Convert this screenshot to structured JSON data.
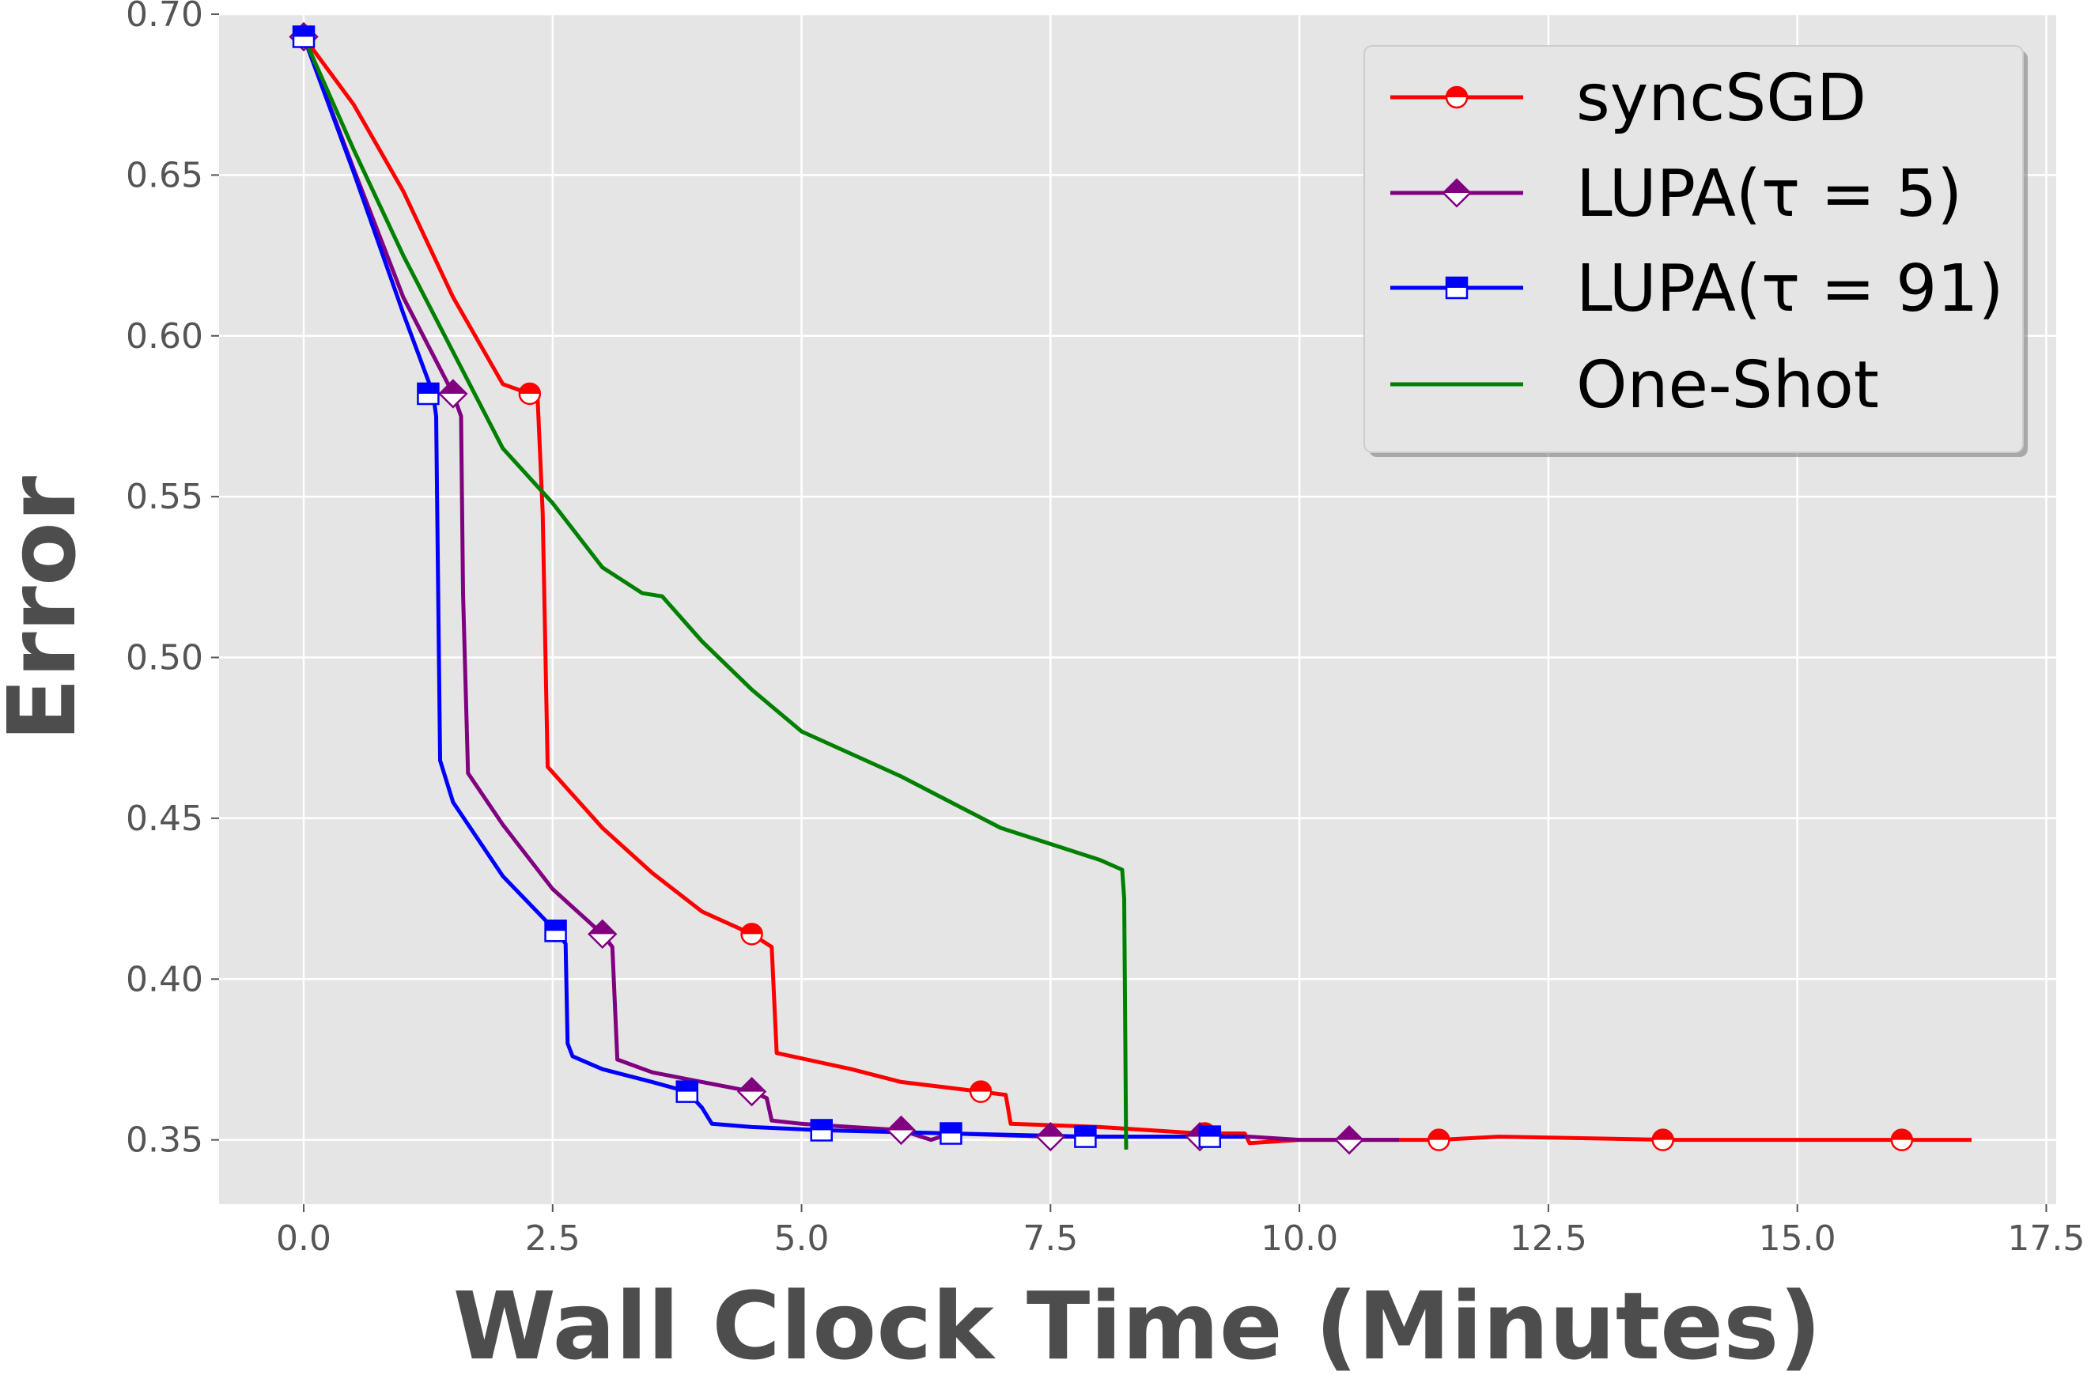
{
  "chart_data": {
    "type": "line",
    "title": "",
    "xlabel": "Wall Clock Time (Minutes)",
    "ylabel": "Error",
    "xlim": [
      -0.85,
      17.6
    ],
    "ylim": [
      0.33,
      0.7
    ],
    "xticks": [
      0.0,
      2.5,
      5.0,
      7.5,
      10.0,
      12.5,
      15.0,
      17.5
    ],
    "xtick_labels": [
      "0.0",
      "2.5",
      "5.0",
      "7.5",
      "10.0",
      "12.5",
      "15.0",
      "17.5"
    ],
    "yticks": [
      0.35,
      0.4,
      0.45,
      0.5,
      0.55,
      0.6,
      0.65,
      0.7
    ],
    "ytick_labels": [
      "0.35",
      "0.40",
      "0.45",
      "0.50",
      "0.55",
      "0.60",
      "0.65",
      "0.70"
    ],
    "grid": true,
    "legend_position": "top-right",
    "series": [
      {
        "name": "syncSGD",
        "color": "#ff0000",
        "marker": "circle",
        "x": [
          0.0,
          0.5,
          1.0,
          1.5,
          2.0,
          2.27,
          2.35,
          2.4,
          2.45,
          3.0,
          3.5,
          4.0,
          4.5,
          4.7,
          4.75,
          5.5,
          6.0,
          6.8,
          7.05,
          7.1,
          8.0,
          9.0,
          9.45,
          9.5,
          10.0,
          11.4,
          12.0,
          13.7,
          14.3,
          15.0,
          16.0,
          16.75
        ],
        "y": [
          0.693,
          0.672,
          0.645,
          0.612,
          0.585,
          0.582,
          0.58,
          0.545,
          0.466,
          0.447,
          0.433,
          0.421,
          0.414,
          0.41,
          0.377,
          0.372,
          0.368,
          0.365,
          0.364,
          0.355,
          0.354,
          0.352,
          0.352,
          0.349,
          0.35,
          0.35,
          0.351,
          0.35,
          0.35,
          0.35,
          0.35,
          0.35
        ],
        "marker_x": [
          0.0,
          2.27,
          4.5,
          6.8,
          9.05,
          11.4,
          13.65,
          16.05
        ],
        "marker_y": [
          0.693,
          0.582,
          0.414,
          0.365,
          0.352,
          0.35,
          0.35,
          0.35
        ]
      },
      {
        "name": "LUPA(τ = 5)",
        "color": "#800080",
        "marker": "diamond",
        "x": [
          0.0,
          0.5,
          1.0,
          1.5,
          1.58,
          1.6,
          1.65,
          2.0,
          2.5,
          3.0,
          3.1,
          3.15,
          3.5,
          4.0,
          4.5,
          4.65,
          4.7,
          5.0,
          6.0,
          6.3,
          6.5,
          7.5,
          8.0,
          9.0,
          9.5,
          10.0,
          10.5,
          11.0
        ],
        "y": [
          0.693,
          0.652,
          0.612,
          0.582,
          0.575,
          0.52,
          0.464,
          0.448,
          0.428,
          0.414,
          0.41,
          0.375,
          0.371,
          0.368,
          0.365,
          0.363,
          0.356,
          0.355,
          0.353,
          0.35,
          0.352,
          0.351,
          0.351,
          0.351,
          0.351,
          0.35,
          0.35,
          0.35
        ],
        "marker_x": [
          0.0,
          1.5,
          3.0,
          4.5,
          6.0,
          7.5,
          9.0,
          10.5
        ],
        "marker_y": [
          0.693,
          0.582,
          0.414,
          0.365,
          0.353,
          0.351,
          0.351,
          0.35
        ]
      },
      {
        "name": "LUPA(τ = 91)",
        "color": "#0000ff",
        "marker": "square",
        "x": [
          0.0,
          0.5,
          1.0,
          1.3,
          1.33,
          1.37,
          1.5,
          2.0,
          2.53,
          2.63,
          2.65,
          2.7,
          3.0,
          3.5,
          3.85,
          4.0,
          4.1,
          4.5,
          5.2,
          6.5,
          7.9,
          9.1,
          9.45
        ],
        "y": [
          0.693,
          0.651,
          0.607,
          0.582,
          0.575,
          0.468,
          0.455,
          0.432,
          0.415,
          0.411,
          0.38,
          0.376,
          0.372,
          0.368,
          0.365,
          0.36,
          0.355,
          0.354,
          0.353,
          0.352,
          0.351,
          0.351,
          0.351
        ],
        "marker_x": [
          0.0,
          1.25,
          2.53,
          3.85,
          5.2,
          6.5,
          7.85,
          9.1
        ],
        "marker_y": [
          0.693,
          0.582,
          0.415,
          0.365,
          0.353,
          0.352,
          0.351,
          0.351
        ]
      },
      {
        "name": "One-Shot",
        "color": "#008000",
        "marker": "none",
        "x": [
          0.0,
          0.5,
          1.0,
          1.5,
          2.0,
          2.5,
          3.0,
          3.4,
          3.6,
          4.0,
          4.5,
          5.0,
          5.5,
          6.0,
          6.5,
          7.0,
          7.5,
          8.0,
          8.22,
          8.24,
          8.26
        ],
        "y": [
          0.693,
          0.658,
          0.625,
          0.595,
          0.565,
          0.548,
          0.528,
          0.52,
          0.519,
          0.505,
          0.49,
          0.477,
          0.47,
          0.463,
          0.455,
          0.447,
          0.442,
          0.437,
          0.434,
          0.425,
          0.347
        ]
      }
    ]
  }
}
